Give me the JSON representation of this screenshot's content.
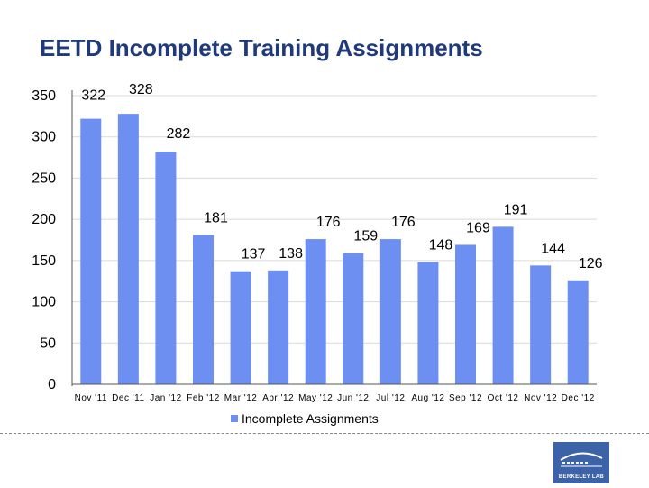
{
  "page": {
    "title": "EETD Incomplete Training Assignments"
  },
  "chart_data": {
    "type": "bar",
    "title": "EETD Incomplete Training Assignments",
    "categories": [
      "Nov '11",
      "Dec '11",
      "Jan '12",
      "Feb '12",
      "Mar '12",
      "Apr '12",
      "May '12",
      "Jun '12",
      "Jul '12",
      "Aug '12",
      "Sep '12",
      "Oct '12",
      "Nov '12",
      "Dec '12"
    ],
    "series": [
      {
        "name": "Incomplete Assignments",
        "values": [
          322,
          328,
          282,
          181,
          137,
          138,
          176,
          159,
          176,
          148,
          169,
          191,
          144,
          126
        ]
      }
    ],
    "ylim": [
      0,
      350
    ],
    "yticks": [
      0,
      50,
      100,
      150,
      200,
      250,
      300,
      350
    ],
    "grid": true,
    "legend_position": "bottom",
    "bar_color": "#6d8ff2",
    "data_labels": true
  },
  "logo": {
    "text": "BERKELEY LAB"
  }
}
